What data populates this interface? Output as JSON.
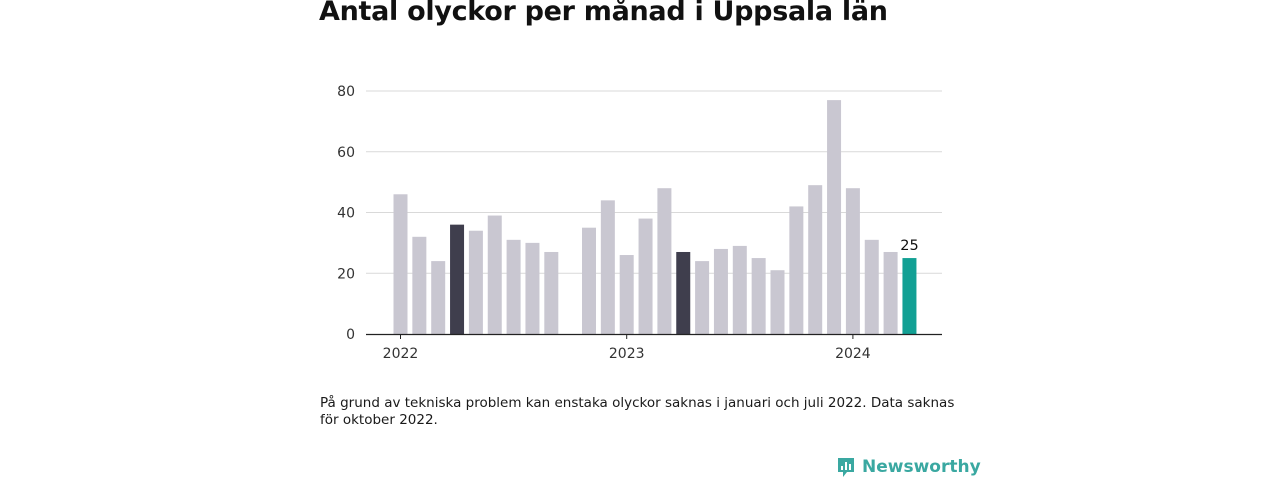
{
  "title": "Antal olyckor per månad i Uppsala län",
  "note": "På grund av tekniska problem kan enstaka olyckor saknas i januari och juli 2022. Data saknas för oktober 2022.",
  "brand": {
    "name": "Newsworthy",
    "icon": "newsworthy-logo-icon",
    "color": "#3aa8a1"
  },
  "colors": {
    "default_bar": "#c9c7d1",
    "highlight_bar": "#3f3e4d",
    "latest_bar": "#12a094",
    "grid": "#d9d9d9",
    "axis": "#222222"
  },
  "chart_data": {
    "type": "bar",
    "title": "Antal olyckor per månad i Uppsala län",
    "xlabel": "",
    "ylabel": "",
    "ylim": [
      0,
      80
    ],
    "yticks": [
      0,
      20,
      40,
      60,
      80
    ],
    "grid": true,
    "x_tick_labels": [
      {
        "label": "2022",
        "month_index": 0
      },
      {
        "label": "2023",
        "month_index": 12
      },
      {
        "label": "2024",
        "month_index": 24
      }
    ],
    "months": [
      "2022-01",
      "2022-02",
      "2022-03",
      "2022-04",
      "2022-05",
      "2022-06",
      "2022-07",
      "2022-08",
      "2022-09",
      "2022-10",
      "2022-11",
      "2022-12",
      "2023-01",
      "2023-02",
      "2023-03",
      "2023-04",
      "2023-05",
      "2023-06",
      "2023-07",
      "2023-08",
      "2023-09",
      "2023-10",
      "2023-11",
      "2023-12",
      "2024-01",
      "2024-02",
      "2024-03",
      "2024-04"
    ],
    "values": [
      46,
      32,
      24,
      36,
      34,
      39,
      31,
      30,
      27,
      null,
      35,
      44,
      26,
      38,
      48,
      27,
      24,
      28,
      29,
      25,
      21,
      42,
      49,
      77,
      48,
      31,
      27,
      25
    ],
    "bar_styles": [
      "default",
      "default",
      "default",
      "highlight",
      "default",
      "default",
      "default",
      "default",
      "default",
      "missing",
      "default",
      "default",
      "default",
      "default",
      "default",
      "highlight",
      "default",
      "default",
      "default",
      "default",
      "default",
      "default",
      "default",
      "default",
      "default",
      "default",
      "default",
      "latest"
    ],
    "data_labels": [
      {
        "month_index": 27,
        "text": "25"
      }
    ]
  }
}
